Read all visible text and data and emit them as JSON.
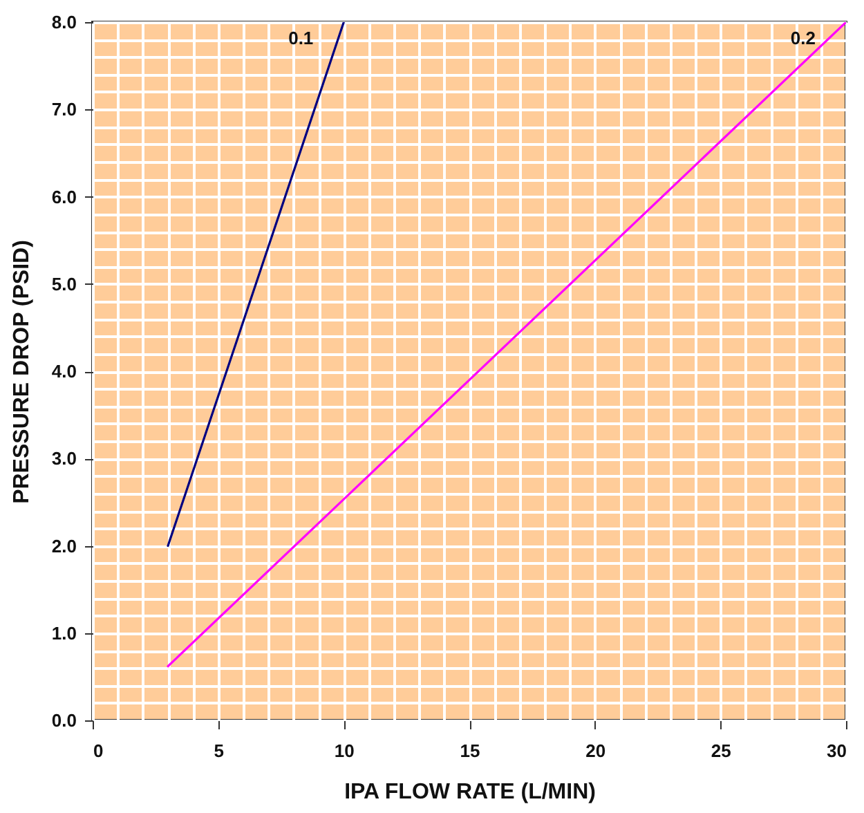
{
  "chart_data": {
    "type": "line",
    "xlabel": "IPA FLOW RATE (L/MIN)",
    "ylabel": "PRESSURE DROP (PSID)",
    "xlim": [
      0,
      30
    ],
    "ylim": [
      0,
      8
    ],
    "xticks": [
      0,
      {
        "value": 1,
        "label": null
      },
      {
        "value": 2,
        "label": null
      },
      {
        "value": 3,
        "label": null
      },
      {
        "value": 4,
        "label": null
      },
      5,
      {
        "value": 6,
        "label": null
      },
      {
        "value": 7,
        "label": null
      },
      {
        "value": 8,
        "label": null
      },
      {
        "value": 9,
        "label": null
      },
      10,
      {
        "value": 11,
        "label": null
      },
      {
        "value": 12,
        "label": null
      },
      {
        "value": 13,
        "label": null
      },
      {
        "value": 14,
        "label": null
      },
      15,
      {
        "value": 16,
        "label": null
      },
      {
        "value": 17,
        "label": null
      },
      {
        "value": 18,
        "label": null
      },
      {
        "value": 19,
        "label": null
      },
      20,
      {
        "value": 21,
        "label": null
      },
      {
        "value": 22,
        "label": null
      },
      {
        "value": 23,
        "label": null
      },
      {
        "value": 24,
        "label": null
      },
      25,
      {
        "value": 26,
        "label": null
      },
      {
        "value": 27,
        "label": null
      },
      {
        "value": 28,
        "label": null
      },
      {
        "value": 29,
        "label": null
      },
      30
    ],
    "yticks": [
      {
        "value": 0,
        "label": "0.0"
      },
      {
        "value": 0.2,
        "label": null
      },
      {
        "value": 0.4,
        "label": null
      },
      {
        "value": 0.6,
        "label": null
      },
      {
        "value": 0.8,
        "label": null
      },
      {
        "value": 1,
        "label": "1.0"
      },
      {
        "value": 1.2,
        "label": null
      },
      {
        "value": 1.4,
        "label": null
      },
      {
        "value": 1.6,
        "label": null
      },
      {
        "value": 1.8,
        "label": null
      },
      {
        "value": 2,
        "label": "2.0"
      },
      {
        "value": 2.2,
        "label": null
      },
      {
        "value": 2.4,
        "label": null
      },
      {
        "value": 2.6,
        "label": null
      },
      {
        "value": 2.8,
        "label": null
      },
      {
        "value": 3,
        "label": "3.0"
      },
      {
        "value": 3.2,
        "label": null
      },
      {
        "value": 3.4,
        "label": null
      },
      {
        "value": 3.6,
        "label": null
      },
      {
        "value": 3.8,
        "label": null
      },
      {
        "value": 4,
        "label": "4.0"
      },
      {
        "value": 4.2,
        "label": null
      },
      {
        "value": 4.4,
        "label": null
      },
      {
        "value": 4.6,
        "label": null
      },
      {
        "value": 4.8,
        "label": null
      },
      {
        "value": 5,
        "label": "5.0"
      },
      {
        "value": 5.2,
        "label": null
      },
      {
        "value": 5.4,
        "label": null
      },
      {
        "value": 5.6,
        "label": null
      },
      {
        "value": 5.8,
        "label": null
      },
      {
        "value": 6,
        "label": "6.0"
      },
      {
        "value": 6.2,
        "label": null
      },
      {
        "value": 6.4,
        "label": null
      },
      {
        "value": 6.6,
        "label": null
      },
      {
        "value": 6.8,
        "label": null
      },
      {
        "value": 7,
        "label": "7.0"
      },
      {
        "value": 7.2,
        "label": null
      },
      {
        "value": 7.4,
        "label": null
      },
      {
        "value": 7.6,
        "label": null
      },
      {
        "value": 7.8,
        "label": null
      },
      {
        "value": 8,
        "label": "8.0"
      }
    ],
    "grid": true,
    "series": [
      {
        "name": "0.1",
        "color": "#000080",
        "x": [
          3,
          10
        ],
        "values": [
          2.0,
          8.0
        ]
      },
      {
        "name": "0.2",
        "color": "#ff00ff",
        "x": [
          3,
          30
        ],
        "values": [
          0.62,
          8.0
        ]
      }
    ]
  }
}
